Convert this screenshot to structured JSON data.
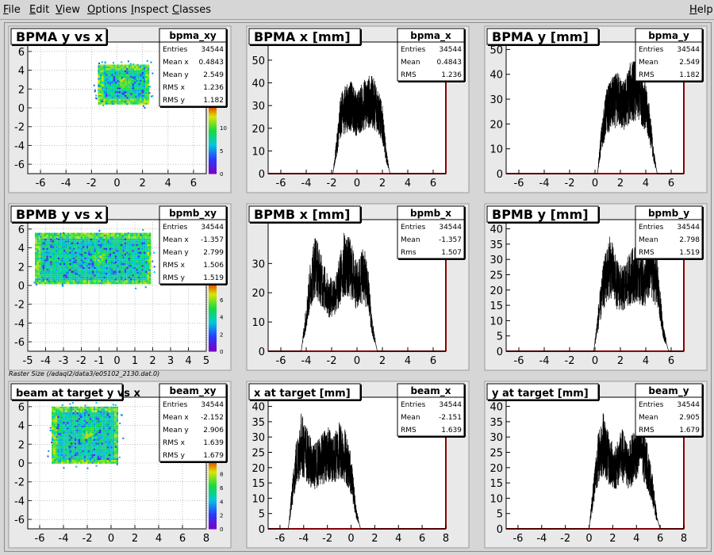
{
  "menu": [
    {
      "key": "file",
      "first": "F",
      "rest": "ile"
    },
    {
      "key": "edit",
      "first": "E",
      "rest": "dit"
    },
    {
      "key": "view",
      "first": "V",
      "rest": "iew"
    },
    {
      "key": "options",
      "first": "O",
      "rest": "ptions"
    },
    {
      "key": "inspect",
      "first": "I",
      "rest": "nspect"
    },
    {
      "key": "classes",
      "first": "C",
      "rest": "lasses"
    },
    {
      "key": "help",
      "first": "H",
      "rest": "elp"
    }
  ],
  "raster_caption": "Raster Size (/adaql2/data3/e05102_2130.dat.0)",
  "colors": {
    "hist_line": "#000000",
    "axis_right": "#8b0000",
    "frame": "#ffffff",
    "pad": "#e8e8e8"
  },
  "pads": [
    {
      "title": "BPMA y vs x",
      "type": "2d",
      "stat_name": "bpma_xy",
      "stats": [
        [
          "Entries",
          "34544"
        ],
        [
          "Mean x",
          "0.4843"
        ],
        [
          "Mean y",
          "2.549"
        ],
        [
          "RMS x",
          "1.236"
        ],
        [
          "RMS y",
          "1.182"
        ]
      ],
      "xticks": [
        "-6",
        "-4",
        "-2",
        "0",
        "2",
        "4",
        "6"
      ],
      "yticks": [
        "-6",
        "-4",
        "-2",
        "0",
        "2",
        "4",
        "6"
      ],
      "zticks": [
        "0",
        "5",
        "10",
        "15"
      ],
      "chart_data": {
        "type": "heatmap",
        "xlim": [
          -7,
          7
        ],
        "ylim": [
          -7,
          7
        ],
        "x_range": [
          -1.5,
          2.5
        ],
        "y_range": [
          0.5,
          4.6
        ],
        "peak": [
          0.5,
          2.9
        ]
      }
    },
    {
      "title": "BPMA x [mm]",
      "type": "1d",
      "stat_name": "bpma_x",
      "stats": [
        [
          "Entries",
          "34544"
        ],
        [
          "Mean",
          "0.4843"
        ],
        [
          "RMS",
          "1.236"
        ]
      ],
      "xticks": [
        "-6",
        "-4",
        "-2",
        "0",
        "2",
        "4",
        "6"
      ],
      "yticks": [
        "0",
        "10",
        "20",
        "30",
        "40",
        "50"
      ],
      "chart_data": {
        "type": "line",
        "xlim": [
          -7,
          7
        ],
        "ylim": [
          0,
          58
        ],
        "x": [
          -1.9,
          -1.6,
          -1.3,
          -1.0,
          -0.5,
          0,
          0.5,
          1.0,
          1.5,
          2.0,
          2.3,
          2.6
        ],
        "y": [
          0,
          12,
          25,
          28,
          30,
          26,
          30,
          32,
          30,
          22,
          8,
          0
        ]
      }
    },
    {
      "title": "BPMA y [mm]",
      "type": "1d",
      "stat_name": "bpma_y",
      "stats": [
        [
          "Entries",
          "34544"
        ],
        [
          "Mean",
          "2.549"
        ],
        [
          "RMS",
          "1.182"
        ]
      ],
      "xticks": [
        "-6",
        "-4",
        "-2",
        "0",
        "2",
        "4",
        "6"
      ],
      "yticks": [
        "0",
        "10",
        "20",
        "30",
        "40",
        "50"
      ],
      "chart_data": {
        "type": "line",
        "xlim": [
          -7,
          7
        ],
        "ylim": [
          0,
          53
        ],
        "x": [
          0.2,
          0.5,
          0.9,
          1.3,
          1.8,
          2.3,
          2.8,
          3.3,
          3.8,
          4.3,
          4.6,
          4.9
        ],
        "y": [
          0,
          14,
          25,
          28,
          30,
          27,
          33,
          34,
          30,
          20,
          8,
          0
        ]
      }
    },
    {
      "title": "BPMB y vs x",
      "type": "2d",
      "stat_name": "bpmb_xy",
      "stats": [
        [
          "Entries",
          "34544"
        ],
        [
          "Mean x",
          "-1.357"
        ],
        [
          "Mean y",
          "2.799"
        ],
        [
          "RMS x",
          "1.506"
        ],
        [
          "RMS y",
          "1.519"
        ]
      ],
      "xticks": [
        "-5",
        "-4",
        "-3",
        "-2",
        "-1",
        "0",
        "1",
        "2",
        "3",
        "4",
        "5"
      ],
      "yticks": [
        "-6",
        "-4",
        "-2",
        "0",
        "2",
        "4",
        "6"
      ],
      "zticks": [
        "0",
        "2",
        "4",
        "6",
        "8"
      ],
      "chart_data": {
        "type": "heatmap",
        "xlim": [
          -5,
          5
        ],
        "ylim": [
          -7,
          7
        ],
        "x_range": [
          -4.6,
          1.9
        ],
        "y_range": [
          0.2,
          5.6
        ],
        "peak": [
          -1.0,
          3.0
        ]
      }
    },
    {
      "title": "BPMB x [mm]",
      "type": "1d",
      "stat_name": "bpmb_x",
      "stats": [
        [
          "Entries",
          "34544"
        ],
        [
          "Mean",
          "-1.357"
        ],
        [
          "Rms",
          "1.507"
        ]
      ],
      "xticks": [
        "-6",
        "-4",
        "-2",
        "0",
        "2",
        "4",
        "6"
      ],
      "yticks": [
        "0",
        "10",
        "20",
        "30"
      ],
      "chart_data": {
        "type": "line",
        "xlim": [
          -7,
          7
        ],
        "ylim": [
          0,
          45
        ],
        "x": [
          -4.4,
          -4.0,
          -3.7,
          -3.3,
          -2.8,
          -2.2,
          -1.6,
          -1.0,
          -0.5,
          0,
          0.5,
          0.9,
          1.2,
          1.6
        ],
        "y": [
          0,
          12,
          22,
          30,
          24,
          18,
          20,
          30,
          28,
          22,
          27,
          20,
          8,
          0
        ]
      }
    },
    {
      "title": "BPMB y [mm]",
      "type": "1d",
      "stat_name": "bpmb_y",
      "stats": [
        [
          "Entries",
          "34544"
        ],
        [
          "Mean",
          "2.798"
        ],
        [
          "RMS",
          "1.519"
        ]
      ],
      "xticks": [
        "-6",
        "-4",
        "-2",
        "0",
        "2",
        "4",
        "6"
      ],
      "yticks": [
        "0",
        "5",
        "10",
        "15",
        "20",
        "25",
        "30",
        "35",
        "40"
      ],
      "chart_data": {
        "type": "line",
        "xlim": [
          -7,
          7
        ],
        "ylim": [
          0,
          43
        ],
        "x": [
          -0.1,
          0.3,
          0.7,
          1.2,
          1.7,
          2.2,
          2.8,
          3.3,
          3.9,
          4.4,
          4.9,
          5.4,
          5.8
        ],
        "y": [
          0,
          12,
          22,
          28,
          22,
          20,
          24,
          26,
          22,
          28,
          22,
          6,
          0
        ]
      }
    },
    {
      "title": "beam at target y vs x",
      "type": "2d",
      "stat_name": "beam_xy",
      "stats": [
        [
          "Entries",
          "34544"
        ],
        [
          "Mean x",
          "-2.152"
        ],
        [
          "Mean y",
          "2.906"
        ],
        [
          "RMS x",
          "1.639"
        ],
        [
          "RMS y",
          "1.679"
        ]
      ],
      "xticks": [
        "-6",
        "-4",
        "-2",
        "0",
        "2",
        "4",
        "6",
        "8"
      ],
      "yticks": [
        "-6",
        "-4",
        "-2",
        "0",
        "2",
        "4",
        "6"
      ],
      "zticks": [
        "0",
        "2",
        "4",
        "6",
        "8",
        "10"
      ],
      "chart_data": {
        "type": "heatmap",
        "xlim": [
          -7,
          8
        ],
        "ylim": [
          -7,
          7
        ],
        "x_range": [
          -5.0,
          0.6
        ],
        "y_range": [
          0.0,
          6.0
        ],
        "peak": [
          -2.0,
          3.2
        ]
      }
    },
    {
      "title": "x at target [mm]",
      "type": "1d",
      "stat_name": "beam_x",
      "stats": [
        [
          "Entries",
          "34544"
        ],
        [
          "Mean",
          "-2.151"
        ],
        [
          "RMS",
          "1.639"
        ]
      ],
      "xticks": [
        "-6",
        "-4",
        "-2",
        "0",
        "2",
        "4",
        "6",
        "8"
      ],
      "yticks": [
        "0",
        "5",
        "10",
        "15",
        "20",
        "25",
        "30",
        "35",
        "40"
      ],
      "chart_data": {
        "type": "line",
        "xlim": [
          -7,
          8
        ],
        "ylim": [
          0,
          43
        ],
        "x": [
          -5.3,
          -5.0,
          -4.7,
          -4.2,
          -3.7,
          -3.2,
          -2.6,
          -2.0,
          -1.5,
          -1.0,
          -0.5,
          0,
          0.4,
          0.8
        ],
        "y": [
          0,
          10,
          20,
          28,
          24,
          20,
          22,
          25,
          22,
          26,
          24,
          18,
          6,
          0
        ]
      }
    },
    {
      "title": "y at target [mm]",
      "type": "1d",
      "stat_name": "beam_y",
      "stats": [
        [
          "Entries",
          "34544"
        ],
        [
          "Mean",
          "2.905"
        ],
        [
          "RMS",
          "1.679"
        ]
      ],
      "xticks": [
        "-6",
        "-4",
        "-2",
        "0",
        "2",
        "4",
        "6",
        "8"
      ],
      "yticks": [
        "0",
        "5",
        "10",
        "15",
        "20",
        "25",
        "30",
        "35",
        "40"
      ],
      "chart_data": {
        "type": "line",
        "xlim": [
          -7,
          8
        ],
        "ylim": [
          0,
          43
        ],
        "x": [
          0.0,
          0.3,
          0.7,
          1.2,
          1.7,
          2.2,
          2.8,
          3.3,
          3.8,
          4.3,
          4.8,
          5.3,
          5.7,
          6.0
        ],
        "y": [
          0,
          10,
          22,
          28,
          22,
          20,
          24,
          20,
          24,
          28,
          22,
          14,
          4,
          0
        ]
      }
    }
  ]
}
